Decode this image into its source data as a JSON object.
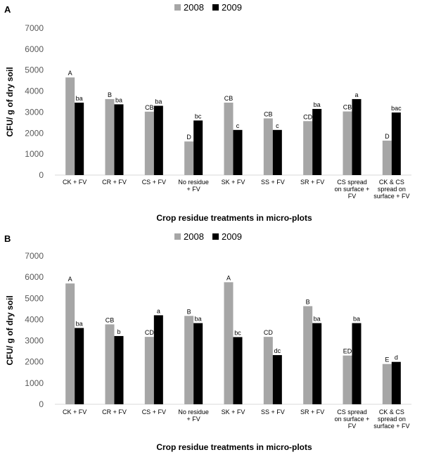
{
  "chart_data": [
    {
      "type": "bar",
      "panel": "A",
      "categories": [
        [
          "CK + FV"
        ],
        [
          "CR + FV"
        ],
        [
          "CS + FV"
        ],
        [
          "No residue",
          "+ FV"
        ],
        [
          "SK + FV"
        ],
        [
          "SS + FV"
        ],
        [
          "SR + FV"
        ],
        [
          "CS spread",
          "on surface +",
          "FV"
        ],
        [
          "CK & CS",
          "spread on",
          "surface + FV"
        ]
      ],
      "series": [
        {
          "name": "2008",
          "color": "#a6a6a6",
          "values": [
            4650,
            3620,
            3020,
            1600,
            3450,
            2700,
            2570,
            3030,
            1640
          ],
          "labels": [
            "A",
            "B",
            "CB",
            "D",
            "CB",
            "CB",
            "CD",
            "CB",
            "D"
          ]
        },
        {
          "name": "2009",
          "color": "#000000",
          "values": [
            3450,
            3370,
            3300,
            2600,
            2150,
            2150,
            3150,
            3620,
            2980
          ],
          "labels": [
            "ba",
            "ba",
            "ba",
            "bc",
            "c",
            "c",
            "ba",
            "a",
            "bac"
          ]
        }
      ],
      "xlabel": "Crop residue treatments in micro-plots",
      "ylabel": "CFU/ g of dry soil",
      "ylim": [
        0,
        7000
      ],
      "yticks": [
        0,
        1000,
        2000,
        3000,
        4000,
        5000,
        6000,
        7000
      ],
      "legend": "top-center",
      "grid": false
    },
    {
      "type": "bar",
      "panel": "B",
      "categories": [
        [
          "CK + FV"
        ],
        [
          "CR + FV"
        ],
        [
          "CS + FV"
        ],
        [
          "No residue",
          "+ FV"
        ],
        [
          "SK + FV"
        ],
        [
          "SS + FV"
        ],
        [
          "SR + FV"
        ],
        [
          "CS spread",
          "on surface +",
          "FV"
        ],
        [
          "CK & CS",
          "spread on",
          "surface + FV"
        ]
      ],
      "series": [
        {
          "name": "2008",
          "color": "#a6a6a6",
          "values": [
            5700,
            3770,
            3180,
            4170,
            5760,
            3180,
            4630,
            2300,
            1900
          ],
          "labels": [
            "A",
            "CB",
            "CD",
            "B",
            "A",
            "CD",
            "B",
            "ED",
            "E"
          ]
        },
        {
          "name": "2009",
          "color": "#000000",
          "values": [
            3600,
            3220,
            4200,
            3830,
            3170,
            2320,
            3830,
            3830,
            2000
          ],
          "labels": [
            "ba",
            "b",
            "a",
            "ba",
            "bc",
            "dc",
            "ba",
            "ba",
            "d"
          ]
        }
      ],
      "xlabel": "Crop residue treatments in micro-plots",
      "ylabel": "CFU/ g of dry soil",
      "ylim": [
        0,
        7000
      ],
      "yticks": [
        0,
        1000,
        2000,
        3000,
        4000,
        5000,
        6000,
        7000
      ],
      "legend": "top-center",
      "grid": false
    }
  ]
}
